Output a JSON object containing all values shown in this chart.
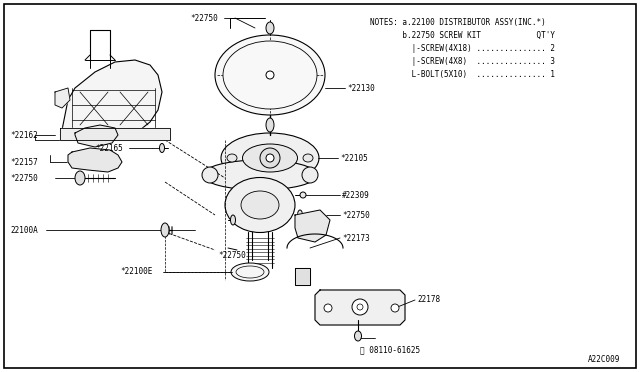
{
  "background_color": "#ffffff",
  "border_color": "#000000",
  "line_color": "#000000",
  "text_color": "#000000",
  "font_size": 5.5,
  "notes": [
    "NOTES: a.22100 DISTRIBUTOR ASSY(INC.*)",
    "       b.22750 SCREW KIT             QT'Y",
    "         |-SCREW(4X18) .............. 2",
    "         |-SCREW(4X8)  .............. 3",
    "         |-BOLT(5X10)  .............. 1"
  ],
  "footer": "A22C009"
}
